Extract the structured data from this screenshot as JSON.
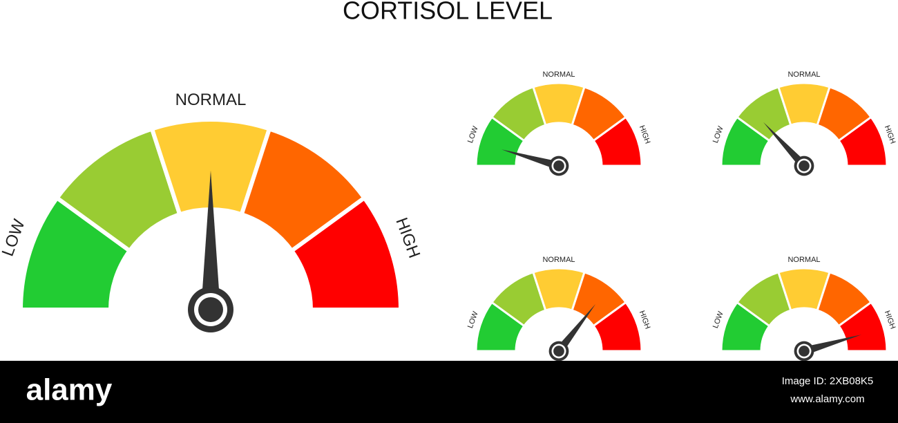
{
  "title": "CORTISOL LEVEL",
  "gauges": [
    {
      "low": "LOW",
      "normal": "NORMAL",
      "high": "HIGH"
    },
    {
      "low": "LOW",
      "normal": "NORMAL",
      "high": "HIGH"
    },
    {
      "low": "LOW",
      "normal": "NORMAL",
      "high": "HIGH"
    },
    {
      "low": "LOW",
      "normal": "NORMAL",
      "high": "HIGH"
    },
    {
      "low": "LOW",
      "normal": "NORMAL",
      "high": "HIGH"
    }
  ],
  "footer": {
    "brand": "alamy",
    "image_id": "Image ID: 2XB08K5",
    "url": "www.alamy.com"
  }
}
